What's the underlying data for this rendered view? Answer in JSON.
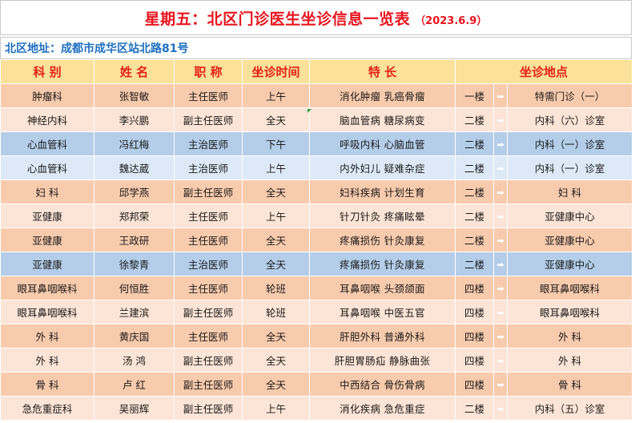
{
  "header": {
    "title": "星期五：北区门诊医生坐诊信息一览表",
    "date": "（2023.6.9）"
  },
  "address": "北区地址：成都市成华区站北路81号",
  "columns": {
    "dept": "科  别",
    "name": "姓  名",
    "title": "职  称",
    "time": "坐诊时间",
    "specialty": "特  长",
    "location": "坐诊地点"
  },
  "icons": {
    "arrow": "right-arrow-icon"
  },
  "colors": {
    "title": "#e8141e",
    "address": "#1e6fc0",
    "header_bg": "#fbe199"
  },
  "rows": [
    {
      "style": "orange",
      "dept": "肿瘤科",
      "name": "张智敏",
      "title": "主任医师",
      "time": "上午",
      "specialty": "消化肿瘤  乳癌骨瘤",
      "floor": "一楼",
      "arrow": "➡",
      "room": "特需门诊（一）"
    },
    {
      "style": "light",
      "dept": "神经内科",
      "name": "李兴鹏",
      "title": "副主任医师",
      "time": "全天",
      "specialty": "脑血管病  糖尿病变",
      "floor": "二楼",
      "arrow": "➡",
      "room": "内科（六）诊室"
    },
    {
      "style": "blue",
      "dept": "心血管科",
      "name": "冯红梅",
      "title": "主治医师",
      "time": "下午",
      "specialty": "呼吸内科  心脑血管",
      "floor": "二楼",
      "arrow": "➡",
      "room": "内科（一）诊室"
    },
    {
      "style": "lightblue",
      "dept": "心血管科",
      "name": "魏达葳",
      "title": "主治医师",
      "time": "上午",
      "specialty": "内外妇儿  疑难杂症",
      "floor": "二楼",
      "arrow": "➡",
      "room": "内科（一）诊室"
    },
    {
      "style": "orange",
      "dept": "妇  科",
      "name": "邱学燕",
      "title": "副主任医师",
      "time": "全天",
      "specialty": "妇科疾病  计划生育",
      "floor": "二楼",
      "arrow": "➡",
      "room": "妇  科"
    },
    {
      "style": "light",
      "dept": "亚健康",
      "name": "郑邦荣",
      "title": "主任医师",
      "time": "上午",
      "specialty": "针刀针灸  疼痛眩晕",
      "floor": "二楼",
      "arrow": "➡",
      "room": "亚健康中心"
    },
    {
      "style": "orange",
      "dept": "亚健康",
      "name": "王政研",
      "title": "主任医师",
      "time": "全天",
      "specialty": "疼痛损伤  针灸康复",
      "floor": "二楼",
      "arrow": "➡",
      "room": "亚健康中心"
    },
    {
      "style": "blue",
      "dept": "亚健康",
      "name": "徐黎青",
      "title": "主治医师",
      "time": "全天",
      "specialty": "疼痛损伤  针灸康复",
      "floor": "二楼",
      "arrow": "➡",
      "room": "亚健康中心"
    },
    {
      "style": "orange",
      "dept": "眼耳鼻咽喉科",
      "name": "何恒胜",
      "title": "主任医师",
      "time": "轮班",
      "specialty": "耳鼻咽喉  头颈颌面",
      "floor": "四楼",
      "arrow": "➡",
      "room": "眼耳鼻咽喉科"
    },
    {
      "style": "light",
      "dept": "眼耳鼻咽喉科",
      "name": "兰建滨",
      "title": "副主任医师",
      "time": "轮班",
      "specialty": "耳鼻咽喉  中医五官",
      "floor": "四楼",
      "arrow": "➡",
      "room": "眼耳鼻咽喉科"
    },
    {
      "style": "orange",
      "dept": "外  科",
      "name": "黄庆国",
      "title": "主任医师",
      "time": "全天",
      "specialty": "肝胆外科  普通外科",
      "floor": "四楼",
      "arrow": "➡",
      "room": "外  科"
    },
    {
      "style": "light",
      "dept": "外  科",
      "name": "汤  鸿",
      "title": "副主任医师",
      "time": "全天",
      "specialty": "肝胆胃肠疝  静脉曲张",
      "floor": "四楼",
      "arrow": "➡",
      "room": "外  科"
    },
    {
      "style": "orange",
      "dept": "骨  科",
      "name": "卢  红",
      "title": "副主任医师",
      "time": "全天",
      "specialty": "中西结合  骨伤骨病",
      "floor": "四楼",
      "arrow": "➡",
      "room": "骨  科"
    },
    {
      "style": "light",
      "dept": "急危重症科",
      "name": "吴丽辉",
      "title": "副主任医师",
      "time": "上午",
      "specialty": "消化疾病  急危重症",
      "floor": "二楼",
      "arrow": "➡",
      "room": "内科（五）诊室"
    }
  ]
}
